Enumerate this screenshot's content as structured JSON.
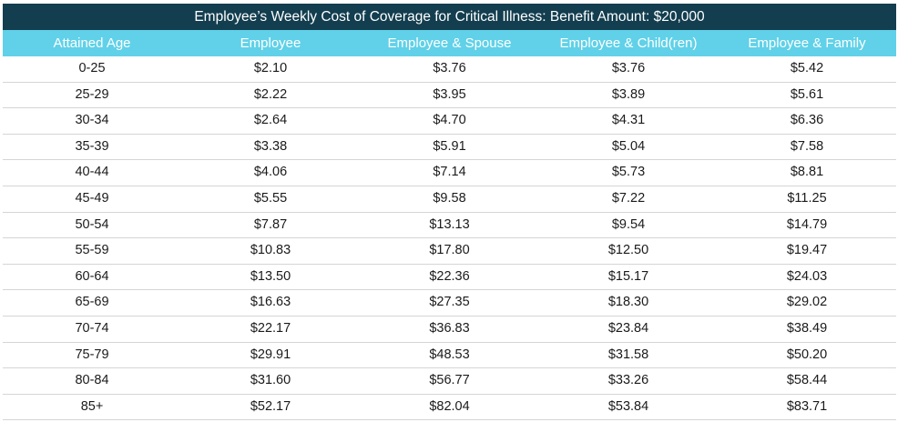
{
  "table": {
    "title": "Employee’s Weekly Cost of Coverage for Critical Illness: Benefit Amount: $20,000",
    "headers": [
      "Attained Age",
      "Employee",
      "Employee & Spouse",
      "Employee & Child(ren)",
      "Employee & Family"
    ],
    "rows": [
      [
        "0-25",
        "$2.10",
        "$3.76",
        "$3.76",
        "$5.42"
      ],
      [
        "25-29",
        "$2.22",
        "$3.95",
        "$3.89",
        "$5.61"
      ],
      [
        "30-34",
        "$2.64",
        "$4.70",
        "$4.31",
        "$6.36"
      ],
      [
        "35-39",
        "$3.38",
        "$5.91",
        "$5.04",
        "$7.58"
      ],
      [
        "40-44",
        "$4.06",
        "$7.14",
        "$5.73",
        "$8.81"
      ],
      [
        "45-49",
        "$5.55",
        "$9.58",
        "$7.22",
        "$11.25"
      ],
      [
        "50-54",
        "$7.87",
        "$13.13",
        "$9.54",
        "$14.79"
      ],
      [
        "55-59",
        "$10.83",
        "$17.80",
        "$12.50",
        "$19.47"
      ],
      [
        "60-64",
        "$13.50",
        "$22.36",
        "$15.17",
        "$24.03"
      ],
      [
        "65-69",
        "$16.63",
        "$27.35",
        "$18.30",
        "$29.02"
      ],
      [
        "70-74",
        "$22.17",
        "$36.83",
        "$23.84",
        "$38.49"
      ],
      [
        "75-79",
        "$29.91",
        "$48.53",
        "$31.58",
        "$50.20"
      ],
      [
        "80-84",
        "$31.60",
        "$56.77",
        "$33.26",
        "$58.44"
      ],
      [
        "85+",
        "$52.17",
        "$82.04",
        "$53.84",
        "$83.71"
      ]
    ]
  },
  "colors": {
    "title_bg": "#133e4f",
    "header_bg": "#60d1e8",
    "row_divider": "#d5d5d5"
  }
}
